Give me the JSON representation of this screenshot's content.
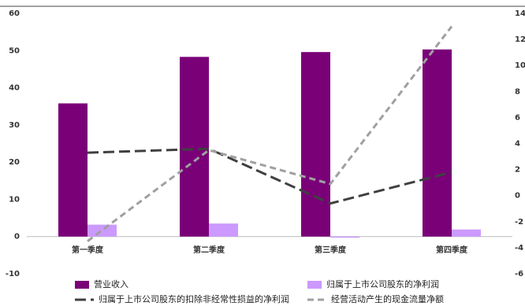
{
  "chart_data": {
    "type": "bar",
    "categories": [
      "第一季度",
      "第二季度",
      "第三季度",
      "第四季度"
    ],
    "series": [
      {
        "name": "营业收入",
        "color": "#7a0078",
        "type": "bar",
        "values": [
          35.8,
          48.3,
          49.6,
          50.3
        ]
      },
      {
        "name": "归属于上市公司股东的净利润",
        "color": "#cc99ff",
        "type": "bar",
        "values": [
          3.2,
          3.5,
          -0.3,
          1.9
        ]
      },
      {
        "name": "归属于上市公司股东的扣除非经常性损益的净利润",
        "color": "#404040",
        "type": "line",
        "axis": "y2",
        "values": [
          3.3,
          3.6,
          -0.6,
          1.8
        ]
      },
      {
        "name": "经营活动产生的现金流量净额",
        "color": "#a0a0a0",
        "type": "line",
        "axis": "y2",
        "values": [
          -3.5,
          3.5,
          0.9,
          13.0
        ]
      }
    ],
    "ylim": [
      -10,
      60
    ],
    "yticks": [
      -10,
      0,
      10,
      20,
      30,
      40,
      50,
      60
    ],
    "y2lim": [
      -6,
      14
    ],
    "y2ticks": [
      -6,
      -4,
      -2,
      0,
      2,
      4,
      6,
      8,
      10,
      12,
      14
    ]
  }
}
